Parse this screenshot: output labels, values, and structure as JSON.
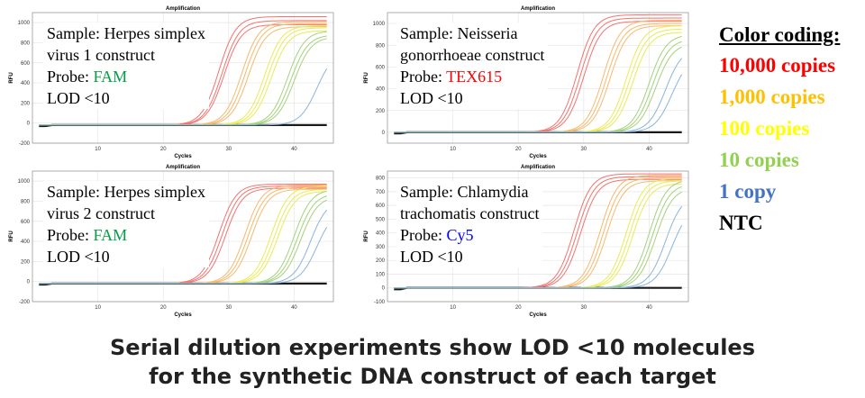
{
  "colors": {
    "copies_10000": "#f2736f",
    "copies_1000": "#f7b86a",
    "copies_100": "#eaea55",
    "copies_10": "#a3d27a",
    "copies_1": "#8bb4dd",
    "ntc": "#1a1a1a"
  },
  "legend": {
    "title": "Color coding:",
    "items": [
      {
        "label": "10,000 copies",
        "color": "#ff0000"
      },
      {
        "label": "1,000 copies",
        "color": "#ffc000"
      },
      {
        "label": "100 copies",
        "color": "#ffff00"
      },
      {
        "label": "10 copies",
        "color": "#92d050"
      },
      {
        "label": "1 copy",
        "color": "#4472c4"
      },
      {
        "label": "NTC",
        "color": "#000000"
      }
    ]
  },
  "caption": {
    "line1": "Serial dilution experiments show LOD <10 molecules",
    "line2": "for the synthetic DNA construct of each target"
  },
  "chart_data": [
    {
      "type": "line",
      "title": "Amplification",
      "xlabel": "Cycles",
      "ylabel": "RFU",
      "xlim": [
        0,
        46
      ],
      "ylim": [
        -200,
        1100
      ],
      "xticks": [
        10,
        20,
        30,
        40
      ],
      "yticks": [
        -200,
        0,
        200,
        400,
        600,
        800,
        1000
      ],
      "sample_line1": "Sample: Herpes simplex",
      "sample_line2": "virus 1 construct",
      "probe_prefix": "Probe: ",
      "probe": "FAM",
      "probe_color": "#00a040",
      "lod": "LOD <10",
      "series": [
        {
          "group": "copies_10000",
          "midpoint": [
            28.5,
            29,
            29.3
          ],
          "plateau": [
            1060,
            1020,
            980
          ]
        },
        {
          "group": "copies_1000",
          "midpoint": [
            32,
            32.5,
            33
          ],
          "plateau": [
            1010,
            990,
            960
          ]
        },
        {
          "group": "copies_100",
          "midpoint": [
            35.5,
            36,
            36.5
          ],
          "plateau": [
            970,
            950,
            920
          ]
        },
        {
          "group": "copies_10",
          "midpoint": [
            39,
            39.5,
            40
          ],
          "plateau": [
            920,
            880,
            860
          ]
        },
        {
          "group": "copies_1",
          "midpoint": [
            43.5
          ],
          "plateau": [
            720
          ]
        }
      ],
      "baseline": -20
    },
    {
      "type": "line",
      "title": "Amplification",
      "xlabel": "Cycles",
      "ylabel": "RFU",
      "xlim": [
        0,
        46
      ],
      "ylim": [
        -100,
        1100
      ],
      "xticks": [
        10,
        20,
        30,
        40
      ],
      "yticks": [
        0,
        200,
        400,
        600,
        800,
        1000
      ],
      "sample_line1": "Sample: Neisseria",
      "sample_line2": "gonorrhoeae construct",
      "probe_prefix": "Probe: ",
      "probe": "TEX615",
      "probe_color": "#ff0000",
      "lod": "LOD <10",
      "series": [
        {
          "group": "copies_10000",
          "midpoint": [
            29,
            29.5,
            30
          ],
          "plateau": [
            1080,
            1050,
            1020
          ]
        },
        {
          "group": "copies_1000",
          "midpoint": [
            33,
            33.5,
            34
          ],
          "plateau": [
            1030,
            1000,
            980
          ]
        },
        {
          "group": "copies_100",
          "midpoint": [
            36.5,
            37,
            37.5
          ],
          "plateau": [
            980,
            950,
            920
          ]
        },
        {
          "group": "copies_10",
          "midpoint": [
            40,
            40.5,
            41
          ],
          "plateau": [
            900,
            860,
            820
          ]
        },
        {
          "group": "copies_1",
          "midpoint": [
            42.5,
            43.5
          ],
          "plateau": [
            780,
            700
          ]
        }
      ],
      "baseline": 0
    },
    {
      "type": "line",
      "title": "Amplification",
      "xlabel": "Cycles",
      "ylabel": "RFU",
      "xlim": [
        0,
        46
      ],
      "ylim": [
        -200,
        1100
      ],
      "xticks": [
        10,
        20,
        30,
        40
      ],
      "yticks": [
        -200,
        0,
        200,
        400,
        600,
        800,
        1000
      ],
      "sample_line1": "Sample: Herpes simplex",
      "sample_line2": "virus 2 construct",
      "probe_prefix": "Probe: ",
      "probe": "FAM",
      "probe_color": "#00a040",
      "lod": "LOD <10",
      "series": [
        {
          "group": "copies_10000",
          "midpoint": [
            28.5,
            29,
            29.5
          ],
          "plateau": [
            970,
            950,
            930
          ]
        },
        {
          "group": "copies_1000",
          "midpoint": [
            32.5,
            33,
            33.5
          ],
          "plateau": [
            960,
            940,
            920
          ]
        },
        {
          "group": "copies_100",
          "midpoint": [
            36.5,
            37,
            37.5
          ],
          "plateau": [
            950,
            920,
            900
          ]
        },
        {
          "group": "copies_10",
          "midpoint": [
            40,
            40.5,
            41
          ],
          "plateau": [
            920,
            880,
            850
          ]
        },
        {
          "group": "copies_1",
          "midpoint": [
            42.5,
            43.5
          ],
          "plateau": [
            820,
            720
          ]
        }
      ],
      "baseline": -20
    },
    {
      "type": "line",
      "title": "Amplification",
      "xlabel": "Cycles",
      "ylabel": "RFU",
      "xlim": [
        0,
        46
      ],
      "ylim": [
        -100,
        850
      ],
      "xticks": [
        10,
        20,
        30,
        40
      ],
      "yticks": [
        -100,
        0,
        100,
        200,
        300,
        400,
        500,
        600,
        700,
        800
      ],
      "sample_line1": "Sample: Chlamydia",
      "sample_line2": "trachomatis construct",
      "probe_prefix": "Probe: ",
      "probe": "Cy5",
      "probe_color": "#0000ff",
      "lod": "LOD <10",
      "series": [
        {
          "group": "copies_10000",
          "midpoint": [
            28.5,
            29,
            29.5
          ],
          "plateau": [
            830,
            810,
            790
          ]
        },
        {
          "group": "copies_1000",
          "midpoint": [
            32.5,
            33,
            33.5
          ],
          "plateau": [
            820,
            800,
            780
          ]
        },
        {
          "group": "copies_100",
          "midpoint": [
            36.5,
            37,
            37.5
          ],
          "plateau": [
            800,
            780,
            760
          ]
        },
        {
          "group": "copies_10",
          "midpoint": [
            40,
            40.5,
            41
          ],
          "plateau": [
            790,
            760,
            730
          ]
        },
        {
          "group": "copies_1",
          "midpoint": [
            42.5,
            43.5
          ],
          "plateau": [
            680,
            600
          ]
        }
      ],
      "baseline": 0
    }
  ]
}
